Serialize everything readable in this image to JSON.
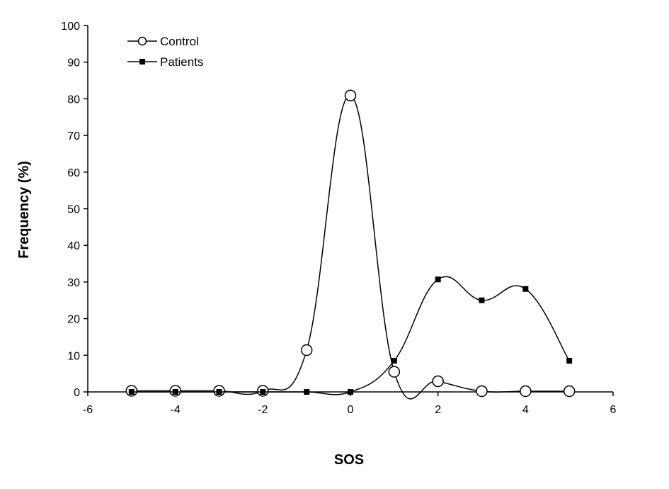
{
  "chart_data": {
    "type": "line",
    "xlabel": "SOS",
    "ylabel": "Frequency (%)",
    "xlim": [
      -6,
      6
    ],
    "ylim": [
      0,
      100
    ],
    "xticks": [
      -6,
      -4,
      -2,
      0,
      2,
      4,
      6
    ],
    "yticks": [
      0,
      10,
      20,
      30,
      40,
      50,
      60,
      70,
      80,
      90,
      100
    ],
    "grid": false,
    "legend_position": "top-left",
    "smooth": true,
    "series": [
      {
        "name": "Control",
        "marker": "open-circle",
        "color": "#000000",
        "x": [
          -5,
          -4,
          -3,
          -2,
          -1,
          0,
          1,
          2,
          3,
          4,
          5
        ],
        "y": [
          0.3,
          0.3,
          0.3,
          0.3,
          11.4,
          80.9,
          5.5,
          2.9,
          0.2,
          0.2,
          0.2
        ]
      },
      {
        "name": "Patients",
        "marker": "filled-square",
        "color": "#000000",
        "x": [
          -5,
          -4,
          -3,
          -2,
          -1,
          0,
          1,
          2,
          3,
          4,
          5
        ],
        "y": [
          0,
          0,
          0,
          0,
          0,
          0,
          8.5,
          30.7,
          25,
          28.1,
          8.5
        ]
      }
    ]
  }
}
